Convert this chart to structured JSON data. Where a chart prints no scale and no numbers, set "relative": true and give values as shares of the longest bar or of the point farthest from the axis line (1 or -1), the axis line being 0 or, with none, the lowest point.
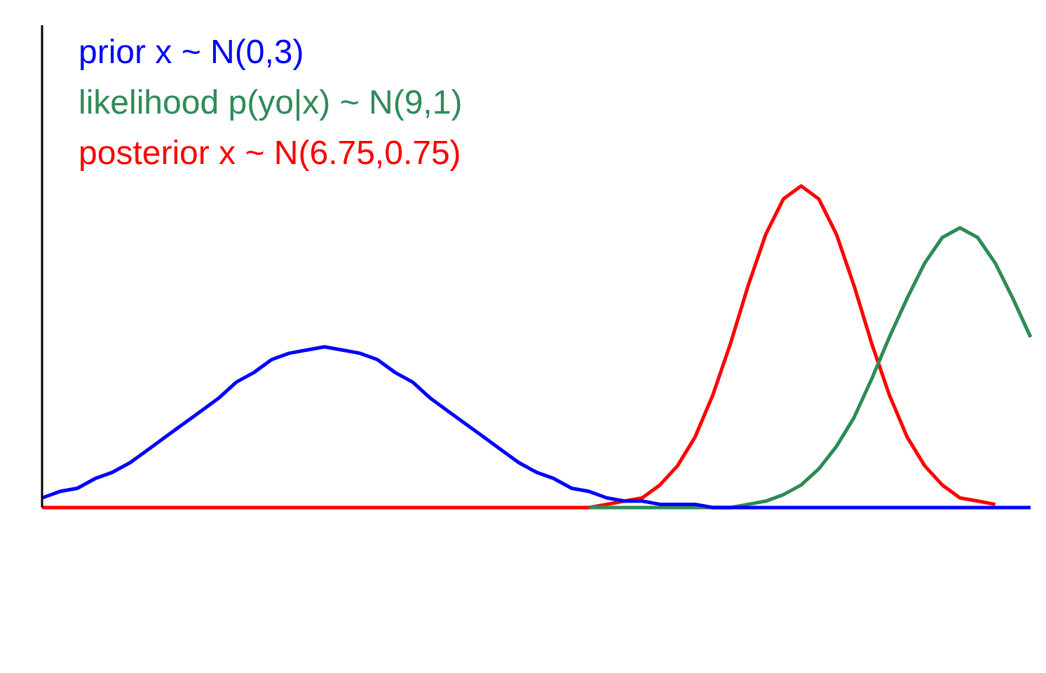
{
  "chart_data": {
    "type": "line",
    "relative": true,
    "legend": "top left",
    "categories": [
      null,
      null,
      null,
      null,
      null,
      null,
      null,
      null,
      null,
      null,
      null,
      null,
      null,
      null,
      null,
      null,
      null,
      null,
      null,
      null,
      null,
      null,
      null,
      null,
      null,
      null,
      null,
      null,
      null,
      null,
      null,
      null,
      null,
      null,
      null,
      null,
      null,
      null,
      null,
      null,
      null,
      null,
      null,
      null,
      null,
      null,
      null,
      null,
      null,
      null,
      null,
      null,
      null,
      null,
      null,
      null,
      null
    ],
    "series": [
      {
        "name": "prior x ~ N(0,3)",
        "color": "#0000ff",
        "values": [
          0.03,
          0.05,
          0.06,
          0.09,
          0.11,
          0.14,
          0.18,
          0.22,
          0.26,
          0.3,
          0.34,
          0.39,
          0.42,
          0.46,
          0.48,
          0.49,
          0.5,
          0.49,
          0.48,
          0.46,
          0.42,
          0.39,
          0.34,
          0.3,
          0.26,
          0.22,
          0.18,
          0.14,
          0.11,
          0.09,
          0.06,
          0.05,
          0.03,
          0.02,
          0.02,
          0.01,
          0.01,
          0.01,
          0,
          0,
          0,
          0,
          0,
          0,
          0,
          0,
          0,
          0,
          0,
          0,
          0,
          0,
          0,
          0,
          0,
          0,
          0
        ]
      },
      {
        "name": "likelihood p(yo|x) ~ N(9,1)",
        "color": "#2e8b57",
        "values": [
          null,
          null,
          null,
          null,
          null,
          null,
          null,
          null,
          null,
          null,
          null,
          null,
          null,
          null,
          null,
          null,
          null,
          null,
          null,
          null,
          null,
          null,
          null,
          null,
          null,
          null,
          null,
          null,
          null,
          null,
          null,
          0,
          0,
          0,
          0,
          0,
          0,
          0,
          0,
          0,
          0.01,
          0.02,
          0.04,
          0.07,
          0.12,
          0.19,
          0.28,
          0.4,
          0.53,
          0.65,
          0.76,
          0.84,
          0.87,
          0.84,
          0.76,
          0.65,
          0.53
        ]
      },
      {
        "name": "posterior x ~ N(6.75,0.75)",
        "color": "#ff0000",
        "values": [
          0,
          0,
          0,
          0,
          0,
          0,
          0,
          0,
          0,
          0,
          0,
          0,
          0,
          0,
          0,
          0,
          0,
          0,
          0,
          0,
          0,
          0,
          0,
          0,
          0,
          0,
          0,
          0,
          0,
          0,
          0,
          0,
          0.01,
          0.02,
          0.03,
          0.07,
          0.13,
          0.22,
          0.35,
          0.51,
          0.69,
          0.85,
          0.96,
          1,
          0.96,
          0.85,
          0.69,
          0.51,
          0.35,
          0.22,
          0.13,
          0.07,
          0.03,
          0.02,
          0.01,
          null,
          null
        ]
      }
    ]
  }
}
